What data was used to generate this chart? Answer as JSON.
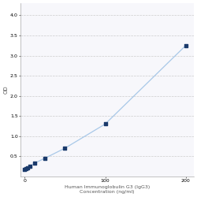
{
  "x_data": [
    0,
    1.563,
    3.125,
    6.25,
    12.5,
    25,
    50,
    100,
    200
  ],
  "y_data": [
    0.17,
    0.19,
    0.21,
    0.25,
    0.33,
    0.45,
    0.7,
    1.3,
    3.25
  ],
  "line_color": "#a8c8e8",
  "marker_color": "#1a3a6b",
  "marker_size": 3,
  "xlabel_line1": "Human Immunoglobulin G3 (IgG3)",
  "xlabel_line2": "Concentration (ng/ml)",
  "ylabel": "OD",
  "xlim": [
    -5,
    210
  ],
  "ylim": [
    0,
    4.3
  ],
  "yticks": [
    0.5,
    1.0,
    1.5,
    2.0,
    2.5,
    3.0,
    3.5,
    4.0
  ],
  "xtick_positions": [
    0,
    100,
    200
  ],
  "xtick_labels": [
    "0",
    "100",
    "200"
  ],
  "grid_color": "#cccccc",
  "bg_color": "#ffffff",
  "plot_bg_color": "#f7f7fb",
  "axis_fontsize": 4.5,
  "tick_fontsize": 4.5,
  "ylabel_fontsize": 5
}
